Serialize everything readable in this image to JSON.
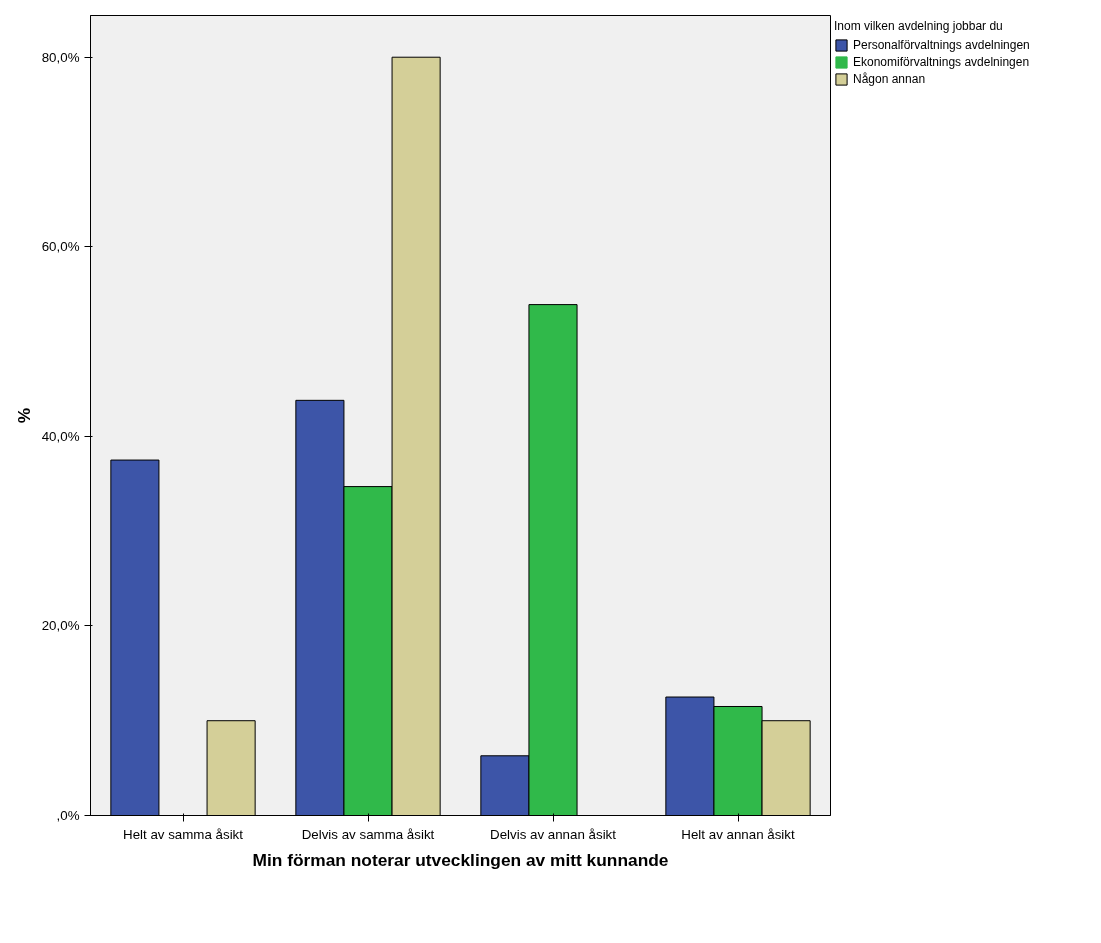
{
  "chart_data": {
    "type": "bar",
    "xlabel": "Min förman noterar utvecklingen av mitt kunnande",
    "ylabel": "%",
    "legend_title": "Inom vilken avdelning jobbar du",
    "categories": [
      "Helt av samma åsikt",
      "Delvis av samma åsikt",
      "Delvis av annan åsikt",
      "Helt av annan åsikt"
    ],
    "series": [
      {
        "name": "Personalförvaltnings avdelningen",
        "color": "#3d55a8",
        "values": [
          37.5,
          43.8,
          6.3,
          12.5
        ]
      },
      {
        "name": "Ekonomiförvaltnings avdelningen",
        "color": "#30b94a",
        "values": [
          0,
          34.7,
          53.9,
          11.5
        ]
      },
      {
        "name": "Någon annan",
        "color": "#d4cf98",
        "values": [
          10,
          80,
          0,
          10
        ]
      }
    ],
    "ylim": [
      0,
      84.4
    ],
    "yticks": [
      {
        "value": 0,
        "label": ",0%"
      },
      {
        "value": 20,
        "label": "20,0%"
      },
      {
        "value": 40,
        "label": "40,0%"
      },
      {
        "value": 60,
        "label": "60,0%"
      },
      {
        "value": 80,
        "label": "80,0%"
      }
    ],
    "grid": false,
    "legend": "right"
  }
}
